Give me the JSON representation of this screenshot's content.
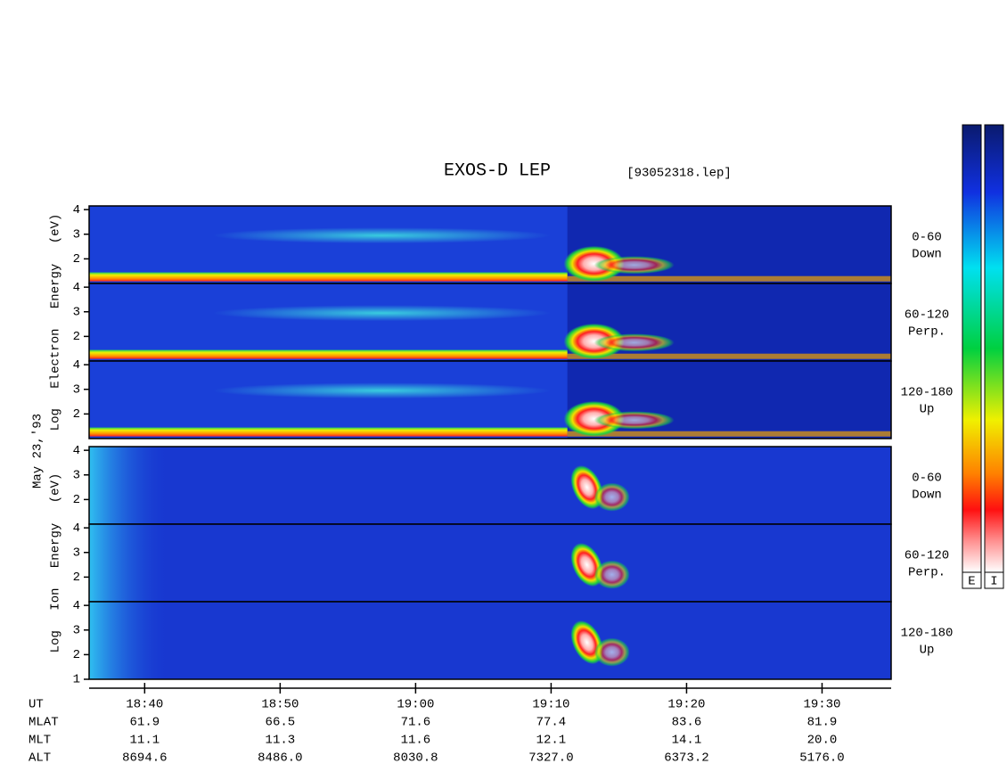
{
  "chart_data": {
    "type": "spectrogram",
    "title": "EXOS-D LEP",
    "subtitle": "[93052318.lep]",
    "date_label": "May 23,'93",
    "x_label": "UT",
    "xlim": [
      1115.9,
      1175.1
    ],
    "xticks": [
      {
        "value": 1120,
        "label": "18:40"
      },
      {
        "value": 1130,
        "label": "18:50"
      },
      {
        "value": 1140,
        "label": "19:00"
      },
      {
        "value": 1150,
        "label": "19:10"
      },
      {
        "value": 1160,
        "label": "19:20"
      },
      {
        "value": 1170,
        "label": "19:30"
      }
    ],
    "ylim": [
      1,
      4.15
    ],
    "groups": [
      {
        "label": "Log Electron Energy (eV)",
        "panels": [
          {
            "label": [
              "0-60",
              "Down"
            ],
            "yticks": [
              2,
              3,
              4
            ]
          },
          {
            "label": [
              "60-120",
              "Perp."
            ],
            "yticks": [
              2,
              3,
              4
            ]
          },
          {
            "label": [
              "120-180",
              "Up"
            ],
            "yticks": [
              2,
              3,
              4
            ]
          }
        ]
      },
      {
        "label": "Log Ion Energy (eV)",
        "panels": [
          {
            "label": [
              "0-60",
              "Down"
            ],
            "yticks": [
              2,
              3,
              4
            ]
          },
          {
            "label": [
              "60-120",
              "Perp."
            ],
            "yticks": [
              2,
              3,
              4
            ]
          },
          {
            "label": [
              "120-180",
              "Up"
            ],
            "yticks": [
              1,
              2,
              3,
              4
            ]
          }
        ]
      }
    ],
    "rows": [
      {
        "name": "MLAT",
        "values": [
          61.9,
          66.5,
          71.6,
          77.4,
          83.6,
          81.9
        ]
      },
      {
        "name": "MLT",
        "values": [
          11.1,
          11.3,
          11.6,
          12.1,
          14.1,
          20.0
        ],
        "value_labels": [
          "11.1",
          "11.3",
          "11.6",
          "12.1",
          "14.1",
          "20.0"
        ]
      },
      {
        "name": "ALT",
        "values": [
          8694.6,
          8486.0,
          8030.8,
          7327.0,
          6373.2,
          5176.0
        ],
        "value_labels": [
          "8694.6",
          "8486.0",
          "8030.8",
          "7327.0",
          "6373.2",
          "5176.0"
        ]
      }
    ],
    "colorbars": [
      "E",
      "I"
    ]
  }
}
